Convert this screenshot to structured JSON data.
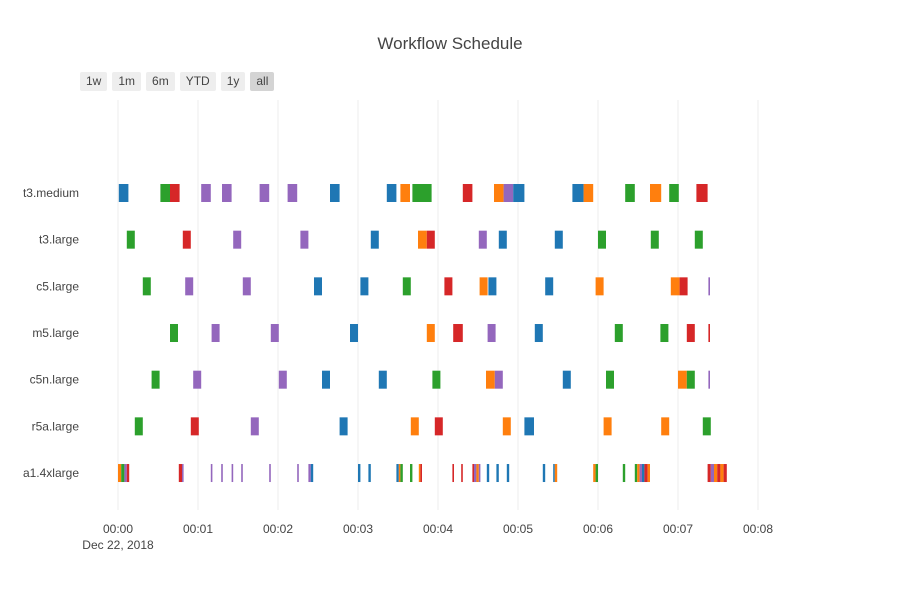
{
  "title": "Workflow Schedule",
  "range_buttons": [
    {
      "label": "1w",
      "active": false
    },
    {
      "label": "1m",
      "active": false
    },
    {
      "label": "6m",
      "active": false
    },
    {
      "label": "YTD",
      "active": false
    },
    {
      "label": "1y",
      "active": false
    },
    {
      "label": "all",
      "active": true
    }
  ],
  "colors": {
    "blue": "#1f77b4",
    "orange": "#ff7f0e",
    "green": "#2ca02c",
    "red": "#d62728",
    "purple": "#9467bd",
    "grid": "#eeeeee",
    "text": "#444444"
  },
  "chart_data": {
    "type": "gantt",
    "title": "Workflow Schedule",
    "xlabel": "",
    "ylabel": "",
    "x_unit": "minutes after 00:00 on Dec 22, 2018",
    "xlim": [
      0,
      8
    ],
    "x_ticks": [
      {
        "value": 0,
        "label": "00:00",
        "sublabel": "Dec 22, 2018"
      },
      {
        "value": 1,
        "label": "00:01"
      },
      {
        "value": 2,
        "label": "00:02"
      },
      {
        "value": 3,
        "label": "00:03"
      },
      {
        "value": 4,
        "label": "00:04"
      },
      {
        "value": 5,
        "label": "00:05"
      },
      {
        "value": 6,
        "label": "00:06"
      },
      {
        "value": 7,
        "label": "00:07"
      },
      {
        "value": 8,
        "label": "00:08"
      }
    ],
    "grid": true,
    "legend": "none",
    "categories": [
      "t3.medium",
      "t3.large",
      "c5.large",
      "m5.large",
      "c5n.large",
      "r5a.large",
      "a1.4xlarge"
    ],
    "tasks": [
      {
        "row": "t3.medium",
        "start": 0.01,
        "end": 0.13,
        "color": "blue"
      },
      {
        "row": "t3.medium",
        "start": 0.53,
        "end": 0.65,
        "color": "green"
      },
      {
        "row": "t3.medium",
        "start": 0.65,
        "end": 0.77,
        "color": "red"
      },
      {
        "row": "t3.medium",
        "start": 1.04,
        "end": 1.16,
        "color": "purple"
      },
      {
        "row": "t3.medium",
        "start": 1.3,
        "end": 1.42,
        "color": "purple"
      },
      {
        "row": "t3.medium",
        "start": 1.77,
        "end": 1.89,
        "color": "purple"
      },
      {
        "row": "t3.medium",
        "start": 2.12,
        "end": 2.24,
        "color": "purple"
      },
      {
        "row": "t3.medium",
        "start": 2.65,
        "end": 2.77,
        "color": "blue"
      },
      {
        "row": "t3.medium",
        "start": 3.36,
        "end": 3.48,
        "color": "blue"
      },
      {
        "row": "t3.medium",
        "start": 3.53,
        "end": 3.65,
        "color": "orange"
      },
      {
        "row": "t3.medium",
        "start": 3.68,
        "end": 3.8,
        "color": "green"
      },
      {
        "row": "t3.medium",
        "start": 3.8,
        "end": 3.92,
        "color": "green"
      },
      {
        "row": "t3.medium",
        "start": 4.31,
        "end": 4.43,
        "color": "red"
      },
      {
        "row": "t3.medium",
        "start": 4.7,
        "end": 4.82,
        "color": "orange"
      },
      {
        "row": "t3.medium",
        "start": 4.82,
        "end": 4.94,
        "color": "purple"
      },
      {
        "row": "t3.medium",
        "start": 4.94,
        "end": 5.08,
        "color": "blue"
      },
      {
        "row": "t3.medium",
        "start": 5.68,
        "end": 5.82,
        "color": "blue"
      },
      {
        "row": "t3.medium",
        "start": 5.82,
        "end": 5.94,
        "color": "orange"
      },
      {
        "row": "t3.medium",
        "start": 6.34,
        "end": 6.46,
        "color": "green"
      },
      {
        "row": "t3.medium",
        "start": 6.65,
        "end": 6.79,
        "color": "orange"
      },
      {
        "row": "t3.medium",
        "start": 6.89,
        "end": 7.01,
        "color": "green"
      },
      {
        "row": "t3.medium",
        "start": 7.23,
        "end": 7.37,
        "color": "red"
      },
      {
        "row": "t3.large",
        "start": 0.11,
        "end": 0.21,
        "color": "green"
      },
      {
        "row": "t3.large",
        "start": 0.81,
        "end": 0.91,
        "color": "red"
      },
      {
        "row": "t3.large",
        "start": 1.44,
        "end": 1.54,
        "color": "purple"
      },
      {
        "row": "t3.large",
        "start": 2.28,
        "end": 2.38,
        "color": "purple"
      },
      {
        "row": "t3.large",
        "start": 3.16,
        "end": 3.26,
        "color": "blue"
      },
      {
        "row": "t3.large",
        "start": 3.75,
        "end": 3.86,
        "color": "orange"
      },
      {
        "row": "t3.large",
        "start": 3.86,
        "end": 3.96,
        "color": "red"
      },
      {
        "row": "t3.large",
        "start": 4.51,
        "end": 4.61,
        "color": "purple"
      },
      {
        "row": "t3.large",
        "start": 4.76,
        "end": 4.86,
        "color": "blue"
      },
      {
        "row": "t3.large",
        "start": 5.46,
        "end": 5.56,
        "color": "blue"
      },
      {
        "row": "t3.large",
        "start": 6.0,
        "end": 6.1,
        "color": "green"
      },
      {
        "row": "t3.large",
        "start": 6.66,
        "end": 6.76,
        "color": "green"
      },
      {
        "row": "t3.large",
        "start": 7.21,
        "end": 7.31,
        "color": "green"
      },
      {
        "row": "c5.large",
        "start": 0.31,
        "end": 0.41,
        "color": "green"
      },
      {
        "row": "c5.large",
        "start": 0.84,
        "end": 0.94,
        "color": "purple"
      },
      {
        "row": "c5.large",
        "start": 1.56,
        "end": 1.66,
        "color": "purple"
      },
      {
        "row": "c5.large",
        "start": 2.45,
        "end": 2.55,
        "color": "blue"
      },
      {
        "row": "c5.large",
        "start": 3.03,
        "end": 3.13,
        "color": "blue"
      },
      {
        "row": "c5.large",
        "start": 3.56,
        "end": 3.66,
        "color": "green"
      },
      {
        "row": "c5.large",
        "start": 4.08,
        "end": 4.18,
        "color": "red"
      },
      {
        "row": "c5.large",
        "start": 4.52,
        "end": 4.62,
        "color": "orange"
      },
      {
        "row": "c5.large",
        "start": 4.63,
        "end": 4.73,
        "color": "blue"
      },
      {
        "row": "c5.large",
        "start": 5.34,
        "end": 5.44,
        "color": "blue"
      },
      {
        "row": "c5.large",
        "start": 5.97,
        "end": 6.07,
        "color": "orange"
      },
      {
        "row": "c5.large",
        "start": 6.91,
        "end": 7.02,
        "color": "orange"
      },
      {
        "row": "c5.large",
        "start": 7.02,
        "end": 7.12,
        "color": "red"
      },
      {
        "row": "c5.large",
        "start": 7.38,
        "end": 7.4,
        "color": "purple"
      },
      {
        "row": "m5.large",
        "start": 0.65,
        "end": 0.75,
        "color": "green"
      },
      {
        "row": "m5.large",
        "start": 1.17,
        "end": 1.27,
        "color": "purple"
      },
      {
        "row": "m5.large",
        "start": 1.91,
        "end": 2.01,
        "color": "purple"
      },
      {
        "row": "m5.large",
        "start": 2.9,
        "end": 3.0,
        "color": "blue"
      },
      {
        "row": "m5.large",
        "start": 3.86,
        "end": 3.96,
        "color": "orange"
      },
      {
        "row": "m5.large",
        "start": 4.19,
        "end": 4.31,
        "color": "red"
      },
      {
        "row": "m5.large",
        "start": 4.62,
        "end": 4.72,
        "color": "purple"
      },
      {
        "row": "m5.large",
        "start": 5.21,
        "end": 5.31,
        "color": "blue"
      },
      {
        "row": "m5.large",
        "start": 6.21,
        "end": 6.31,
        "color": "green"
      },
      {
        "row": "m5.large",
        "start": 6.78,
        "end": 6.88,
        "color": "green"
      },
      {
        "row": "m5.large",
        "start": 7.11,
        "end": 7.21,
        "color": "red"
      },
      {
        "row": "m5.large",
        "start": 7.38,
        "end": 7.4,
        "color": "red"
      },
      {
        "row": "c5n.large",
        "start": 0.42,
        "end": 0.52,
        "color": "green"
      },
      {
        "row": "c5n.large",
        "start": 0.94,
        "end": 1.04,
        "color": "purple"
      },
      {
        "row": "c5n.large",
        "start": 2.01,
        "end": 2.11,
        "color": "purple"
      },
      {
        "row": "c5n.large",
        "start": 2.55,
        "end": 2.65,
        "color": "blue"
      },
      {
        "row": "c5n.large",
        "start": 3.26,
        "end": 3.36,
        "color": "blue"
      },
      {
        "row": "c5n.large",
        "start": 3.93,
        "end": 4.03,
        "color": "green"
      },
      {
        "row": "c5n.large",
        "start": 4.6,
        "end": 4.71,
        "color": "orange"
      },
      {
        "row": "c5n.large",
        "start": 4.71,
        "end": 4.81,
        "color": "purple"
      },
      {
        "row": "c5n.large",
        "start": 5.56,
        "end": 5.66,
        "color": "blue"
      },
      {
        "row": "c5n.large",
        "start": 6.1,
        "end": 6.2,
        "color": "green"
      },
      {
        "row": "c5n.large",
        "start": 7.0,
        "end": 7.11,
        "color": "orange"
      },
      {
        "row": "c5n.large",
        "start": 7.11,
        "end": 7.21,
        "color": "green"
      },
      {
        "row": "c5n.large",
        "start": 7.38,
        "end": 7.4,
        "color": "purple"
      },
      {
        "row": "r5a.large",
        "start": 0.21,
        "end": 0.31,
        "color": "green"
      },
      {
        "row": "r5a.large",
        "start": 0.91,
        "end": 1.01,
        "color": "red"
      },
      {
        "row": "r5a.large",
        "start": 1.66,
        "end": 1.76,
        "color": "purple"
      },
      {
        "row": "r5a.large",
        "start": 2.77,
        "end": 2.87,
        "color": "blue"
      },
      {
        "row": "r5a.large",
        "start": 3.66,
        "end": 3.76,
        "color": "orange"
      },
      {
        "row": "r5a.large",
        "start": 3.96,
        "end": 4.06,
        "color": "red"
      },
      {
        "row": "r5a.large",
        "start": 4.81,
        "end": 4.91,
        "color": "orange"
      },
      {
        "row": "r5a.large",
        "start": 5.08,
        "end": 5.2,
        "color": "blue"
      },
      {
        "row": "r5a.large",
        "start": 6.07,
        "end": 6.17,
        "color": "orange"
      },
      {
        "row": "r5a.large",
        "start": 6.79,
        "end": 6.89,
        "color": "orange"
      },
      {
        "row": "r5a.large",
        "start": 7.31,
        "end": 7.41,
        "color": "green"
      },
      {
        "row": "a1.4xlarge",
        "start": 0.0,
        "end": 0.04,
        "color": "orange"
      },
      {
        "row": "a1.4xlarge",
        "start": 0.04,
        "end": 0.08,
        "color": "green"
      },
      {
        "row": "a1.4xlarge",
        "start": 0.08,
        "end": 0.11,
        "color": "purple"
      },
      {
        "row": "a1.4xlarge",
        "start": 0.11,
        "end": 0.14,
        "color": "red"
      },
      {
        "row": "a1.4xlarge",
        "start": 0.76,
        "end": 0.8,
        "color": "red"
      },
      {
        "row": "a1.4xlarge",
        "start": 0.8,
        "end": 0.82,
        "color": "purple"
      },
      {
        "row": "a1.4xlarge",
        "start": 1.16,
        "end": 1.18,
        "color": "purple"
      },
      {
        "row": "a1.4xlarge",
        "start": 1.29,
        "end": 1.31,
        "color": "purple"
      },
      {
        "row": "a1.4xlarge",
        "start": 1.42,
        "end": 1.44,
        "color": "purple"
      },
      {
        "row": "a1.4xlarge",
        "start": 1.54,
        "end": 1.56,
        "color": "purple"
      },
      {
        "row": "a1.4xlarge",
        "start": 1.89,
        "end": 1.91,
        "color": "purple"
      },
      {
        "row": "a1.4xlarge",
        "start": 2.24,
        "end": 2.26,
        "color": "purple"
      },
      {
        "row": "a1.4xlarge",
        "start": 2.38,
        "end": 2.41,
        "color": "purple"
      },
      {
        "row": "a1.4xlarge",
        "start": 2.41,
        "end": 2.44,
        "color": "blue"
      },
      {
        "row": "a1.4xlarge",
        "start": 3.0,
        "end": 3.03,
        "color": "blue"
      },
      {
        "row": "a1.4xlarge",
        "start": 3.13,
        "end": 3.16,
        "color": "blue"
      },
      {
        "row": "a1.4xlarge",
        "start": 3.48,
        "end": 3.51,
        "color": "blue"
      },
      {
        "row": "a1.4xlarge",
        "start": 3.51,
        "end": 3.53,
        "color": "orange"
      },
      {
        "row": "a1.4xlarge",
        "start": 3.53,
        "end": 3.56,
        "color": "green"
      },
      {
        "row": "a1.4xlarge",
        "start": 3.65,
        "end": 3.68,
        "color": "green"
      },
      {
        "row": "a1.4xlarge",
        "start": 3.76,
        "end": 3.78,
        "color": "orange"
      },
      {
        "row": "a1.4xlarge",
        "start": 3.78,
        "end": 3.8,
        "color": "red"
      },
      {
        "row": "a1.4xlarge",
        "start": 4.18,
        "end": 4.2,
        "color": "red"
      },
      {
        "row": "a1.4xlarge",
        "start": 4.29,
        "end": 4.31,
        "color": "red"
      },
      {
        "row": "a1.4xlarge",
        "start": 4.43,
        "end": 4.45,
        "color": "red"
      },
      {
        "row": "a1.4xlarge",
        "start": 4.45,
        "end": 4.48,
        "color": "purple"
      },
      {
        "row": "a1.4xlarge",
        "start": 4.48,
        "end": 4.51,
        "color": "orange"
      },
      {
        "row": "a1.4xlarge",
        "start": 4.51,
        "end": 4.53,
        "color": "purple"
      },
      {
        "row": "a1.4xlarge",
        "start": 4.61,
        "end": 4.64,
        "color": "blue"
      },
      {
        "row": "a1.4xlarge",
        "start": 4.73,
        "end": 4.76,
        "color": "blue"
      },
      {
        "row": "a1.4xlarge",
        "start": 4.86,
        "end": 4.89,
        "color": "blue"
      },
      {
        "row": "a1.4xlarge",
        "start": 5.31,
        "end": 5.34,
        "color": "blue"
      },
      {
        "row": "a1.4xlarge",
        "start": 5.44,
        "end": 5.46,
        "color": "blue"
      },
      {
        "row": "a1.4xlarge",
        "start": 5.46,
        "end": 5.49,
        "color": "orange"
      },
      {
        "row": "a1.4xlarge",
        "start": 5.94,
        "end": 5.97,
        "color": "orange"
      },
      {
        "row": "a1.4xlarge",
        "start": 5.97,
        "end": 6.0,
        "color": "green"
      },
      {
        "row": "a1.4xlarge",
        "start": 6.31,
        "end": 6.34,
        "color": "green"
      },
      {
        "row": "a1.4xlarge",
        "start": 6.46,
        "end": 6.49,
        "color": "green"
      },
      {
        "row": "a1.4xlarge",
        "start": 6.49,
        "end": 6.52,
        "color": "orange"
      },
      {
        "row": "a1.4xlarge",
        "start": 6.52,
        "end": 6.55,
        "color": "purple"
      },
      {
        "row": "a1.4xlarge",
        "start": 6.55,
        "end": 6.58,
        "color": "blue"
      },
      {
        "row": "a1.4xlarge",
        "start": 6.58,
        "end": 6.62,
        "color": "red"
      },
      {
        "row": "a1.4xlarge",
        "start": 6.62,
        "end": 6.65,
        "color": "orange"
      },
      {
        "row": "a1.4xlarge",
        "start": 7.37,
        "end": 7.41,
        "color": "red"
      },
      {
        "row": "a1.4xlarge",
        "start": 7.41,
        "end": 7.45,
        "color": "purple"
      },
      {
        "row": "a1.4xlarge",
        "start": 7.45,
        "end": 7.49,
        "color": "orange"
      },
      {
        "row": "a1.4xlarge",
        "start": 7.49,
        "end": 7.53,
        "color": "red"
      },
      {
        "row": "a1.4xlarge",
        "start": 7.53,
        "end": 7.57,
        "color": "orange"
      },
      {
        "row": "a1.4xlarge",
        "start": 7.57,
        "end": 7.61,
        "color": "red"
      }
    ]
  }
}
